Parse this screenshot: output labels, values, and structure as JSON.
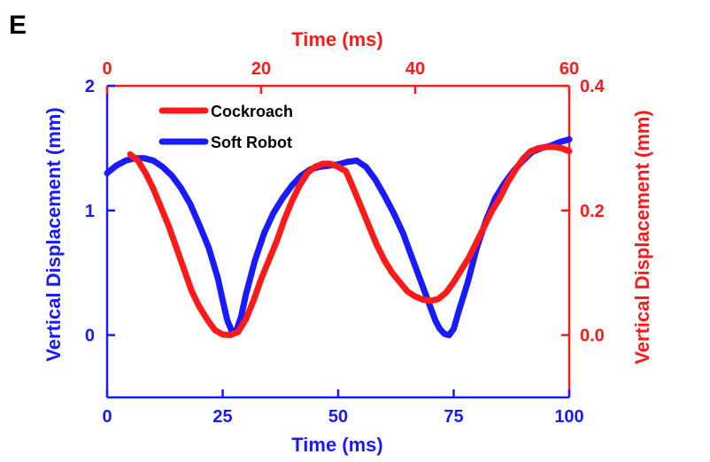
{
  "panel_label": "E",
  "colors": {
    "robot": "#1a1aff",
    "cockroach": "#ff1a1a",
    "frame": "#000000"
  },
  "chart_data": {
    "type": "line",
    "grid": false,
    "legend_placement": "top-left",
    "axes": {
      "bottom": {
        "label": "Time (ms)",
        "range": [
          0,
          100
        ],
        "ticks": [
          0,
          25,
          50,
          75,
          100
        ],
        "tick_labels": [
          "0",
          "25",
          "50",
          "75",
          "100"
        ],
        "color": "#1a1aff"
      },
      "left": {
        "label": "Vertical Displacement (mm)",
        "range": [
          -0.5,
          2
        ],
        "ticks": [
          0,
          1,
          2
        ],
        "tick_labels": [
          "0",
          "1",
          "2"
        ],
        "color": "#1a1aff"
      },
      "top": {
        "label": "Time (ms)",
        "range": [
          0,
          60
        ],
        "ticks": [
          0,
          20,
          40,
          60
        ],
        "tick_labels": [
          "0",
          "20",
          "40",
          "60"
        ],
        "color": "#ff1a1a"
      },
      "right": {
        "label": "Vertical Displacement (mm)",
        "range": [
          -0.1,
          0.4
        ],
        "ticks": [
          0.0,
          0.2,
          0.4
        ],
        "tick_labels": [
          "0.0",
          "0.2",
          "0.4"
        ],
        "color": "#ff1a1a"
      }
    },
    "series": [
      {
        "name": "Cockroach",
        "axes": "top-right",
        "color": "#ff1a1a",
        "x": [
          3.0,
          4.0,
          5.0,
          6.0,
          7.0,
          8.0,
          9.0,
          10.0,
          11.0,
          12.0,
          13.0,
          14.0,
          15.0,
          16.0,
          17.0,
          18.0,
          19.0,
          20.0,
          21.0,
          22.0,
          23.0,
          24.0,
          25.0,
          26.0,
          27.0,
          28.0,
          29.0,
          30.0,
          31.0,
          32.0,
          33.0,
          34.0,
          35.0,
          36.0,
          37.0,
          38.0,
          39.0,
          40.0,
          41.0,
          42.0,
          43.0,
          44.0,
          45.0,
          46.0,
          47.0,
          48.0,
          49.0,
          50.0,
          51.0,
          52.0,
          53.0,
          54.0,
          55.0,
          56.0,
          57.0,
          58.0,
          59.0,
          60.0
        ],
        "y": [
          0.29,
          0.28,
          0.26,
          0.235,
          0.205,
          0.175,
          0.14,
          0.105,
          0.07,
          0.045,
          0.025,
          0.008,
          0.001,
          0.0,
          0.005,
          0.025,
          0.055,
          0.09,
          0.12,
          0.15,
          0.185,
          0.215,
          0.24,
          0.26,
          0.27,
          0.275,
          0.275,
          0.27,
          0.263,
          0.235,
          0.205,
          0.175,
          0.145,
          0.12,
          0.1,
          0.085,
          0.07,
          0.062,
          0.057,
          0.055,
          0.058,
          0.068,
          0.085,
          0.105,
          0.125,
          0.15,
          0.175,
          0.2,
          0.22,
          0.245,
          0.265,
          0.283,
          0.295,
          0.3,
          0.302,
          0.302,
          0.3,
          0.295
        ]
      },
      {
        "name": "Soft Robot",
        "axes": "bottom-left",
        "color": "#1a1aff",
        "x": [
          0,
          2,
          4,
          6,
          8,
          10,
          12,
          14,
          16,
          18,
          20,
          22,
          24,
          25,
          26,
          27,
          28,
          29,
          30,
          32,
          34,
          36,
          38,
          40,
          42,
          44,
          46,
          48,
          50,
          52,
          54,
          56,
          58,
          60,
          62,
          64,
          66,
          68,
          70,
          71,
          72,
          73,
          74,
          75,
          76,
          78,
          80,
          82,
          84,
          86,
          88,
          90,
          92,
          94,
          96,
          98,
          100
        ],
        "y": [
          1.3,
          1.36,
          1.4,
          1.42,
          1.42,
          1.4,
          1.35,
          1.28,
          1.18,
          1.05,
          0.88,
          0.7,
          0.45,
          0.28,
          0.12,
          0.03,
          0.04,
          0.15,
          0.32,
          0.6,
          0.82,
          0.98,
          1.1,
          1.2,
          1.28,
          1.33,
          1.35,
          1.36,
          1.37,
          1.39,
          1.4,
          1.35,
          1.25,
          1.12,
          0.98,
          0.82,
          0.62,
          0.42,
          0.22,
          0.12,
          0.05,
          0.01,
          0.0,
          0.05,
          0.18,
          0.42,
          0.7,
          0.92,
          1.1,
          1.22,
          1.32,
          1.4,
          1.47,
          1.5,
          1.52,
          1.55,
          1.57
        ]
      }
    ]
  }
}
